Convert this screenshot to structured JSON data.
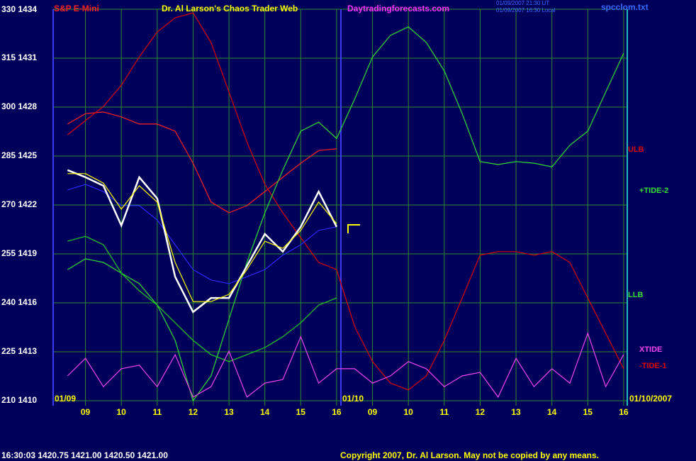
{
  "chart_data": {
    "type": "line",
    "title": "S&P E-Mini",
    "subtitle": "Dr. Al Larson's Chaos Trader Web",
    "site": "Daytradingforecasts.com",
    "timestamps": [
      "01/09/2007 21:30 UT",
      "01/09/2007 16:30 Local"
    ],
    "file": "spcclom.txt",
    "date_labels": [
      "01/09",
      "01/10",
      "01/10/2007"
    ],
    "ylim": [
      210,
      330
    ],
    "yticks": [
      {
        "value": 210,
        "label": "210 1410"
      },
      {
        "value": 225,
        "label": "225 1413"
      },
      {
        "value": 240,
        "label": "240 1416"
      },
      {
        "value": 255,
        "label": "255 1419"
      },
      {
        "value": 270,
        "label": "270 1422"
      },
      {
        "value": 285,
        "label": "285 1425"
      },
      {
        "value": 300,
        "label": "300 1428"
      },
      {
        "value": 315,
        "label": "315 1431"
      },
      {
        "value": 330,
        "label": "330 1434"
      }
    ],
    "xlim": [
      8.1,
      24.1
    ],
    "xticks": [
      {
        "value": 9,
        "label": "09"
      },
      10,
      11,
      12,
      13,
      14,
      15,
      16,
      {
        "value": 17,
        "label": "09"
      },
      {
        "value": 18,
        "label": "10"
      },
      {
        "value": 19,
        "label": "11"
      },
      {
        "value": 20,
        "label": "12"
      },
      {
        "value": 21,
        "label": "13"
      },
      {
        "value": 22,
        "label": "14"
      },
      {
        "value": 23,
        "label": "15"
      },
      {
        "value": 24,
        "label": "16"
      }
    ],
    "grid": true,
    "x": [
      8.5,
      9,
      9.5,
      10,
      10.5,
      11,
      11.5,
      12,
      12.5,
      13,
      13.5,
      14,
      14.5,
      15,
      15.5,
      16,
      16.5,
      17,
      17.5,
      18,
      18.5,
      19,
      19.5,
      20,
      20.5,
      21,
      21.5,
      22,
      22.5,
      23,
      23.5,
      24
    ],
    "series": [
      {
        "color": "#ff2020",
        "values": [
          294.8,
          298,
          298.5,
          297,
          294.8,
          294.8,
          292.6,
          282.8,
          270.9,
          267.6,
          269.8,
          274.1,
          278.5,
          282.8,
          286.7,
          287.2,
          null,
          null,
          null,
          null,
          null,
          null,
          null,
          null,
          null,
          null,
          null,
          null,
          null,
          null,
          null,
          null
        ]
      },
      {
        "color": "#dd0000",
        "values": [
          291.5,
          295.9,
          300.2,
          306.7,
          315.4,
          323,
          327.4,
          328.9,
          319.8,
          304.6,
          289.3,
          276.3,
          267.6,
          260,
          252.4,
          250.2,
          232.8,
          222,
          215.4,
          213.3,
          217.6,
          228.5,
          241.5,
          254.6,
          255.7,
          255.7,
          254.6,
          255.7,
          252.4,
          241.5,
          230.7,
          219.8
        ]
      },
      {
        "color": "#33dd33",
        "values": [
          250.2,
          253.5,
          252.4,
          249.1,
          245.9,
          239.3,
          228.5,
          210,
          217.6,
          235,
          252.4,
          267.6,
          280.7,
          292.6,
          295.4,
          290.4,
          302.4,
          315.4,
          322,
          324.6,
          319.8,
          311.1,
          298,
          283.3,
          282.4,
          283.3,
          282.8,
          281.7,
          288.3,
          292.6,
          304.6,
          316.5
        ]
      },
      {
        "color": "#22cc22",
        "values": [
          258.9,
          260.4,
          257.8,
          249.1,
          243.7,
          239.3,
          233.9,
          228.5,
          224.1,
          222,
          224.1,
          226.3,
          229.6,
          233.9,
          239.3,
          241.5,
          null,
          null,
          null,
          null,
          null,
          null,
          null,
          null,
          null,
          null,
          null,
          null,
          null,
          null,
          null,
          null
        ]
      },
      {
        "color": "#ee44ee",
        "values": [
          217.6,
          223,
          214.3,
          219.8,
          220.9,
          214.3,
          224.1,
          211.1,
          214.3,
          225.2,
          211.1,
          215.4,
          216.5,
          229.6,
          215.4,
          219.8,
          219.8,
          215.4,
          217.6,
          222,
          219.8,
          214.3,
          217.6,
          218.7,
          211.1,
          223,
          214.3,
          219.8,
          215.4,
          230.7,
          214.3,
          224.1
        ]
      },
      {
        "color": "#2a2aff",
        "values": [
          274.6,
          276.3,
          274.1,
          269.8,
          269.8,
          265.4,
          257.8,
          250.2,
          247,
          245.9,
          248,
          250.2,
          254.6,
          257.8,
          262.2,
          263.3,
          null,
          null,
          null,
          null,
          null,
          null,
          null,
          null,
          null,
          null,
          null,
          null,
          null,
          null,
          null,
          null
        ]
      },
      {
        "color": "#ffffff",
        "values": [
          280.7,
          278.5,
          275.9,
          263.7,
          278.5,
          272,
          248,
          237.2,
          241.5,
          241.5,
          251.3,
          261.1,
          255.7,
          263.3,
          274.1,
          263.3,
          null,
          null,
          null,
          null,
          null,
          null,
          null,
          null,
          null,
          null,
          null,
          null,
          null,
          null,
          null,
          null
        ]
      },
      {
        "color": "#ffff00",
        "values": [
          279.6,
          279.6,
          276.7,
          268.7,
          275.9,
          270.9,
          252.4,
          240.4,
          240.4,
          242.6,
          250.2,
          258.9,
          256.7,
          262.2,
          270.9,
          264.3,
          null,
          null,
          null,
          null,
          null,
          null,
          null,
          null,
          null,
          null,
          null,
          null,
          null,
          null,
          null,
          null
        ]
      }
    ],
    "labels": [
      {
        "text": "ULB",
        "color": "#dd0000"
      },
      {
        "text": "+TIDE-2",
        "color": "#33dd33"
      },
      {
        "text": "LLB",
        "color": "#33dd33"
      },
      {
        "text": "XTIDE",
        "color": "#ee44ee"
      },
      {
        "text": "-TIDE-1",
        "color": "#dd0000"
      }
    ]
  },
  "footer": {
    "quote": "16:30:03  1420.75 1421.00 1420.50 1421.00",
    "copyright": "Copyright 2007, Dr. Al Larson. May not be copied by any means."
  }
}
